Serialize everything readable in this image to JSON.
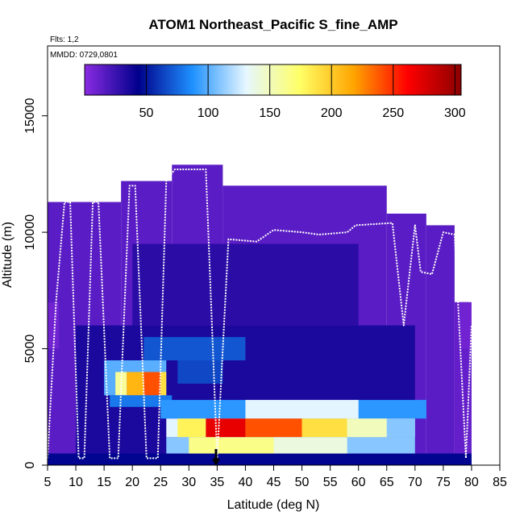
{
  "chart_data": {
    "type": "heatmap",
    "title": "ATOM1 Northeast_Pacific S_fine_AMP",
    "flights_label": "Flts: 1,2",
    "dates_label": "MMDD: 0729,0801",
    "xlabel": "Latitude (deg N)",
    "ylabel": "Altitude (m)",
    "xlim": [
      5,
      85
    ],
    "ylim": [
      0,
      18000
    ],
    "x_ticks": [
      5,
      10,
      15,
      20,
      25,
      30,
      35,
      40,
      45,
      50,
      55,
      60,
      65,
      70,
      75,
      80,
      85
    ],
    "y_ticks": [
      0,
      5000,
      10000,
      15000
    ],
    "colorbar": {
      "range": [
        0,
        305
      ],
      "ticks": [
        50,
        100,
        150,
        200,
        250,
        300
      ],
      "colors": [
        "#8a2be2",
        "#00008b",
        "#1e90ff",
        "#e6f7ff",
        "#ffff66",
        "#ffa500",
        "#ff0000",
        "#8b0000"
      ]
    },
    "cells": [
      {
        "lat0": 5,
        "lat1": 18,
        "alt0": 0,
        "alt1": 11300,
        "value": 15
      },
      {
        "lat0": 18,
        "lat1": 27,
        "alt0": 0,
        "alt1": 12200,
        "value": 15
      },
      {
        "lat0": 27,
        "lat1": 36,
        "alt0": 0,
        "alt1": 12900,
        "value": 15
      },
      {
        "lat0": 36,
        "lat1": 65,
        "alt0": 0,
        "alt1": 12000,
        "value": 15
      },
      {
        "lat0": 65,
        "lat1": 72,
        "alt0": 0,
        "alt1": 10800,
        "value": 15
      },
      {
        "lat0": 72,
        "lat1": 77,
        "alt0": 0,
        "alt1": 10300,
        "value": 15
      },
      {
        "lat0": 77,
        "lat1": 79.5,
        "alt0": 0,
        "alt1": 7000,
        "value": 12
      },
      {
        "lat0": 79.5,
        "lat1": 80,
        "alt0": 0,
        "alt1": 6000,
        "value": 12
      },
      {
        "lat0": 5,
        "lat1": 80,
        "alt0": 0,
        "alt1": 500,
        "value": 45
      },
      {
        "lat0": 10,
        "lat1": 70,
        "alt0": 500,
        "alt1": 6000,
        "value": 35
      },
      {
        "lat0": 20,
        "lat1": 60,
        "alt0": 6000,
        "alt1": 9500,
        "value": 30
      },
      {
        "lat0": 5,
        "lat1": 7,
        "alt0": 5000,
        "alt1": 7000,
        "value": 8
      },
      {
        "lat0": 78,
        "lat1": 80,
        "alt0": 5000,
        "alt1": 7000,
        "value": 8
      },
      {
        "lat0": 22,
        "lat1": 40,
        "alt0": 4500,
        "alt1": 5500,
        "value": 70
      },
      {
        "lat0": 28,
        "lat1": 36,
        "alt0": 3500,
        "alt1": 4500,
        "value": 65
      },
      {
        "lat0": 15,
        "lat1": 26,
        "alt0": 3000,
        "alt1": 4500,
        "value": 100
      },
      {
        "lat0": 17,
        "lat1": 19,
        "alt0": 3000,
        "alt1": 4000,
        "value": 160
      },
      {
        "lat0": 19,
        "lat1": 22,
        "alt0": 3000,
        "alt1": 4000,
        "value": 210
      },
      {
        "lat0": 22,
        "lat1": 25,
        "alt0": 3000,
        "alt1": 4000,
        "value": 240
      },
      {
        "lat0": 25,
        "lat1": 26,
        "alt0": 3000,
        "alt1": 4000,
        "value": 190
      },
      {
        "lat0": 16,
        "lat1": 27,
        "alt0": 2500,
        "alt1": 3000,
        "value": 80
      },
      {
        "lat0": 25,
        "lat1": 72,
        "alt0": 2000,
        "alt1": 2800,
        "value": 90
      },
      {
        "lat0": 40,
        "lat1": 60,
        "alt0": 2000,
        "alt1": 2800,
        "value": 130
      },
      {
        "lat0": 26,
        "lat1": 70,
        "alt0": 1200,
        "alt1": 2000,
        "value": 130
      },
      {
        "lat0": 28,
        "lat1": 33,
        "alt0": 1200,
        "alt1": 2000,
        "value": 180
      },
      {
        "lat0": 33,
        "lat1": 40,
        "alt0": 1200,
        "alt1": 2000,
        "value": 270
      },
      {
        "lat0": 40,
        "lat1": 50,
        "alt0": 1200,
        "alt1": 2000,
        "value": 240
      },
      {
        "lat0": 50,
        "lat1": 58,
        "alt0": 1200,
        "alt1": 2000,
        "value": 190
      },
      {
        "lat0": 58,
        "lat1": 65,
        "alt0": 1200,
        "alt1": 2000,
        "value": 150
      },
      {
        "lat0": 65,
        "lat1": 70,
        "alt0": 1200,
        "alt1": 2000,
        "value": 110
      },
      {
        "lat0": 26,
        "lat1": 70,
        "alt0": 500,
        "alt1": 1200,
        "value": 110
      },
      {
        "lat0": 30,
        "lat1": 45,
        "alt0": 500,
        "alt1": 1200,
        "value": 165
      },
      {
        "lat0": 45,
        "lat1": 58,
        "alt0": 500,
        "alt1": 1200,
        "value": 140
      }
    ],
    "flight_track": [
      [
        5,
        300
      ],
      [
        6.5,
        7000
      ],
      [
        8,
        11300
      ],
      [
        9,
        11300
      ],
      [
        10.5,
        300
      ],
      [
        11.5,
        300
      ],
      [
        13,
        11300
      ],
      [
        14,
        11300
      ],
      [
        16,
        300
      ],
      [
        17.5,
        300
      ],
      [
        19.5,
        12000
      ],
      [
        20.5,
        12000
      ],
      [
        22.5,
        300
      ],
      [
        24.5,
        300
      ],
      [
        26,
        12200
      ],
      [
        27.5,
        12700
      ],
      [
        33,
        12700
      ],
      [
        35,
        300
      ],
      [
        37,
        9700
      ],
      [
        42,
        9600
      ],
      [
        45,
        10100
      ],
      [
        50,
        10000
      ],
      [
        53,
        9900
      ],
      [
        58,
        10000
      ],
      [
        59.5,
        10300
      ],
      [
        66,
        10400
      ],
      [
        68,
        6000
      ],
      [
        70,
        10300
      ],
      [
        71,
        8300
      ],
      [
        73,
        8200
      ],
      [
        75,
        10000
      ],
      [
        77,
        9900
      ],
      [
        79,
        300
      ],
      [
        80,
        6000
      ]
    ],
    "marker": {
      "lat": 34.8,
      "alt": 0
    }
  }
}
